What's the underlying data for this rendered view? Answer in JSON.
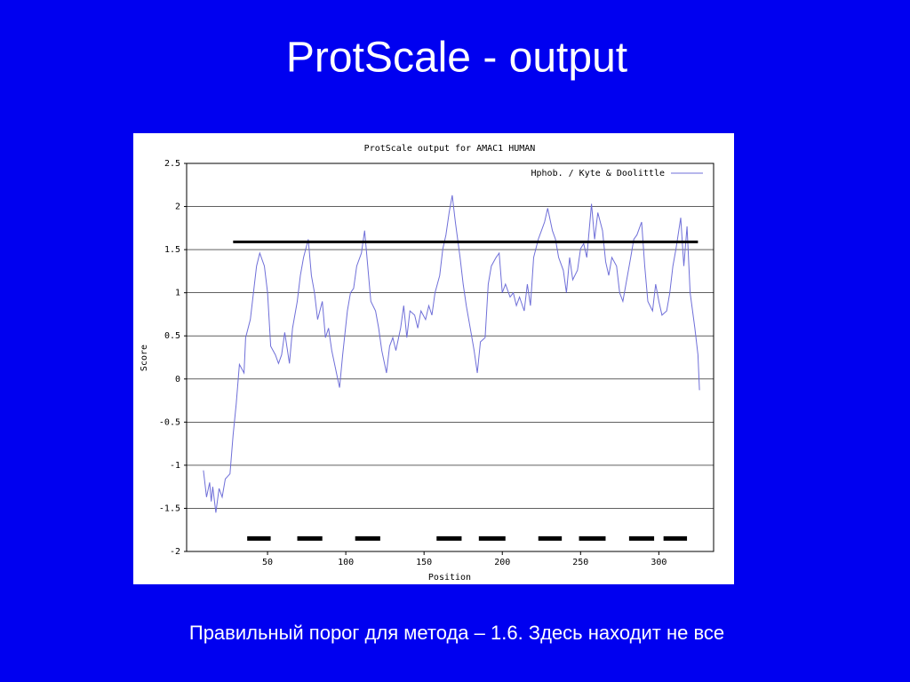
{
  "slide_title": "ProtScale - output",
  "caption": "Правильный порог для метода – 1.6. Здесь находит не все",
  "chart_data": {
    "type": "line",
    "title": "ProtScale output for AMAC1 HUMAN",
    "x_label": "Position",
    "y_label": "Score",
    "x": [
      9,
      11,
      13,
      14,
      15,
      17,
      19,
      21,
      23,
      26,
      28,
      30,
      32,
      35,
      36,
      39,
      41,
      43,
      45,
      48,
      50,
      52,
      55,
      57,
      59,
      61,
      64,
      66,
      69,
      71,
      73,
      76,
      78,
      80,
      82,
      85,
      87,
      89,
      91,
      94,
      96,
      98,
      101,
      103,
      105,
      107,
      110,
      112,
      114,
      116,
      119,
      121,
      123,
      126,
      128,
      130,
      132,
      135,
      137,
      139,
      141,
      144,
      146,
      148,
      151,
      153,
      155,
      157,
      160,
      162,
      164,
      166,
      168,
      170,
      173,
      175,
      177,
      180,
      182,
      184,
      186,
      189,
      191,
      193,
      196,
      198,
      200,
      202,
      205,
      207,
      209,
      211,
      214,
      216,
      218,
      220,
      223,
      225,
      227,
      229,
      232,
      234,
      236,
      239,
      241,
      243,
      245,
      248,
      250,
      252,
      254,
      257,
      259,
      261,
      264,
      266,
      268,
      270,
      273,
      275,
      277,
      280,
      282,
      284,
      286,
      289,
      291,
      293,
      296,
      298,
      300,
      302,
      305,
      307,
      309,
      311,
      314,
      316,
      318,
      320,
      323,
      325,
      326
    ],
    "series": [
      {
        "name": "Hphob. / Kyte & Doolittle",
        "color": "#6f6fd8",
        "values": [
          -1.06,
          -1.37,
          -1.2,
          -1.42,
          -1.25,
          -1.55,
          -1.27,
          -1.37,
          -1.16,
          -1.1,
          -0.65,
          -0.29,
          0.17,
          0.07,
          0.48,
          0.69,
          1.0,
          1.31,
          1.46,
          1.31,
          1.0,
          0.38,
          0.28,
          0.18,
          0.28,
          0.54,
          0.18,
          0.59,
          0.9,
          1.2,
          1.41,
          1.62,
          1.2,
          1.0,
          0.69,
          0.9,
          0.48,
          0.59,
          0.33,
          0.07,
          -0.1,
          0.28,
          0.79,
          1.0,
          1.05,
          1.31,
          1.46,
          1.72,
          1.31,
          0.9,
          0.79,
          0.59,
          0.33,
          0.07,
          0.38,
          0.48,
          0.33,
          0.59,
          0.85,
          0.48,
          0.79,
          0.74,
          0.59,
          0.79,
          0.69,
          0.85,
          0.74,
          1.0,
          1.2,
          1.51,
          1.67,
          1.93,
          2.13,
          1.82,
          1.41,
          1.1,
          0.85,
          0.54,
          0.33,
          0.07,
          0.43,
          0.48,
          1.1,
          1.31,
          1.41,
          1.46,
          1.0,
          1.1,
          0.95,
          1.0,
          0.85,
          0.95,
          0.79,
          1.1,
          0.85,
          1.41,
          1.62,
          1.72,
          1.82,
          1.98,
          1.72,
          1.62,
          1.41,
          1.26,
          1.0,
          1.41,
          1.15,
          1.26,
          1.51,
          1.57,
          1.41,
          2.03,
          1.62,
          1.93,
          1.72,
          1.36,
          1.2,
          1.41,
          1.31,
          1.0,
          0.9,
          1.2,
          1.41,
          1.62,
          1.67,
          1.82,
          1.31,
          0.9,
          0.79,
          1.1,
          0.9,
          0.74,
          0.79,
          1.0,
          1.31,
          1.51,
          1.87,
          1.31,
          1.77,
          1.0,
          0.59,
          0.28,
          -0.13
        ]
      }
    ],
    "xlim": [
      0,
      335
    ],
    "ylim": [
      -2,
      2.5
    ],
    "xticks": [
      50,
      100,
      150,
      200,
      250,
      300
    ],
    "yticks": [
      2.5,
      2,
      1.5,
      1,
      0.5,
      0,
      -0.5,
      -1,
      -1.5,
      -2
    ],
    "grid": true,
    "legend": "upper right",
    "threshold": {
      "y": 1.59,
      "x": [
        28,
        325
      ],
      "color": "#000000"
    },
    "segments": {
      "y": -1.85,
      "color": "#000000",
      "x": [
        [
          37,
          52
        ],
        [
          69,
          85
        ],
        [
          106,
          122
        ],
        [
          158,
          174
        ],
        [
          185,
          202
        ],
        [
          223,
          238
        ],
        [
          249,
          266
        ],
        [
          281,
          297
        ],
        [
          303,
          318
        ]
      ]
    }
  }
}
